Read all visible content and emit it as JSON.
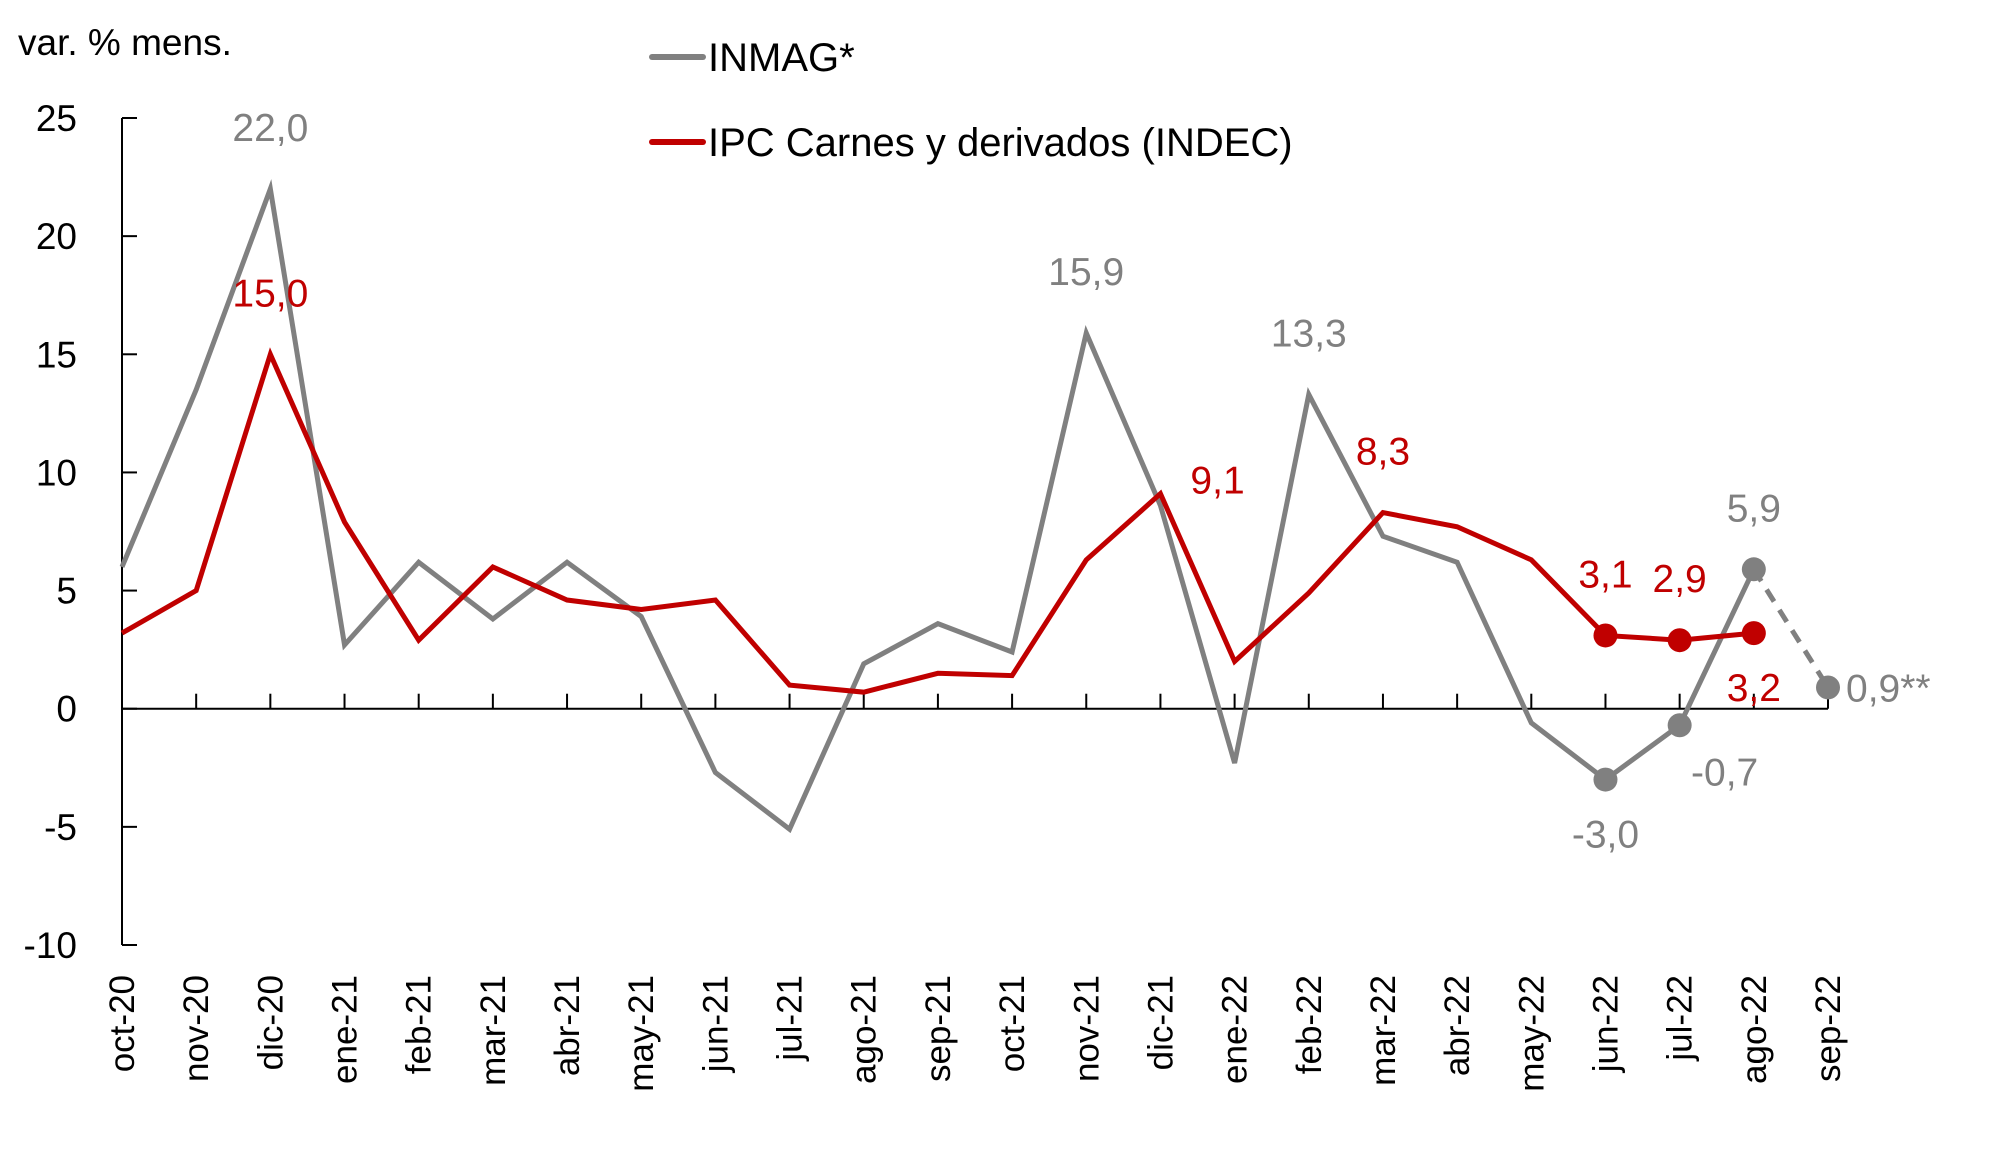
{
  "chart_data": {
    "type": "line",
    "title": "",
    "ylabel": "var. % mens.",
    "xlabel": "",
    "ylim": [
      -10,
      25
    ],
    "yticks": [
      25,
      20,
      15,
      10,
      5,
      0,
      -5,
      -10
    ],
    "grid": false,
    "legend_position": "top-center",
    "categories": [
      "oct-20",
      "nov-20",
      "dic-20",
      "ene-21",
      "feb-21",
      "mar-21",
      "abr-21",
      "may-21",
      "jun-21",
      "jul-21",
      "ago-21",
      "sep-21",
      "oct-21",
      "nov-21",
      "dic-21",
      "ene-22",
      "feb-22",
      "mar-22",
      "abr-22",
      "may-22",
      "jun-22",
      "jul-22",
      "ago-22",
      "sep-22"
    ],
    "series": [
      {
        "name": "INMAG*",
        "color": "#808080",
        "values": [
          6.0,
          13.5,
          22.0,
          2.7,
          6.2,
          3.8,
          6.2,
          3.9,
          -2.7,
          -5.1,
          1.9,
          3.6,
          2.4,
          15.9,
          8.6,
          -2.3,
          13.3,
          7.3,
          6.2,
          -0.6,
          -3.0,
          -0.7,
          5.9,
          0.9
        ],
        "dashed_last_segment": true,
        "markers_at": [
          "jun-22",
          "jul-22",
          "ago-22",
          "sep-22"
        ],
        "data_labels": [
          {
            "category": "dic-20",
            "text": "22,0",
            "position": "above"
          },
          {
            "category": "nov-21",
            "text": "15,9",
            "position": "above"
          },
          {
            "category": "feb-22",
            "text": "13,3",
            "position": "above"
          },
          {
            "category": "jun-22",
            "text": "-3,0",
            "position": "below"
          },
          {
            "category": "jul-22",
            "text": "-0,7",
            "position": "below-left"
          },
          {
            "category": "ago-22",
            "text": "5,9",
            "position": "above"
          },
          {
            "category": "sep-22",
            "text": "0,9**",
            "position": "right"
          }
        ]
      },
      {
        "name": "IPC Carnes y derivados (INDEC)",
        "color": "#C00000",
        "values": [
          3.2,
          5.0,
          15.0,
          7.9,
          2.9,
          6.0,
          4.6,
          4.2,
          4.6,
          1.0,
          0.7,
          1.5,
          1.4,
          6.3,
          9.1,
          2.0,
          4.9,
          8.3,
          7.7,
          6.3,
          3.1,
          2.9,
          3.2,
          null
        ],
        "markers_at": [
          "jun-22",
          "jul-22",
          "ago-22"
        ],
        "data_labels": [
          {
            "category": "dic-20",
            "text": "15,0",
            "position": "above"
          },
          {
            "category": "dic-21",
            "text": "9,1",
            "position": "right"
          },
          {
            "category": "mar-22",
            "text": "8,3",
            "position": "above"
          },
          {
            "category": "jun-22",
            "text": "3,1",
            "position": "above"
          },
          {
            "category": "jul-22",
            "text": "2,9",
            "position": "above"
          },
          {
            "category": "ago-22",
            "text": "3,2",
            "position": "below"
          }
        ]
      }
    ]
  }
}
